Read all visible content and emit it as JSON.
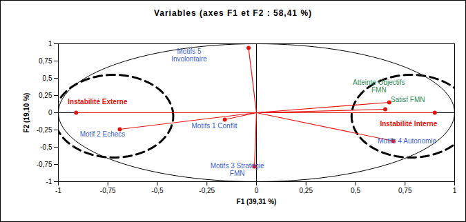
{
  "chart_data": {
    "type": "scatter",
    "title": "Variables (axes F1 et F2 : 58,41 %)",
    "x_label": "F1 (39,31 %)",
    "y_label": "F2 (19,10 %)",
    "labels": [
      "Motifs 5\nInvolontaire",
      "Instabilité Externe",
      "Motif 2 Echecs",
      "Motifs 1 Conflit",
      "Motifs 3 Stratégie\nFMN",
      "Atteinte Objectifs\nFMN",
      "Satisf FMN",
      "Instabilité Interne",
      "Motifs 4 Autonomie"
    ],
    "x": [
      -0.04,
      -0.91,
      -0.69,
      -0.16,
      -0.01,
      0.67,
      0.65,
      0.9,
      0.69
    ],
    "y": [
      0.94,
      0.0,
      -0.24,
      -0.1,
      -0.78,
      0.15,
      0.05,
      0.0,
      -0.41
    ],
    "color": "#e8120c",
    "marker": "circle",
    "xlim": [
      -1,
      1
    ],
    "ylim": [
      -1,
      1
    ],
    "xticks": [
      -1,
      {
        "value": -0.75,
        "label": "-0,75"
      },
      {
        "value": -0.5,
        "label": "-0,5"
      },
      {
        "value": -0.25,
        "label": "-0,25"
      },
      0,
      {
        "value": 0.25,
        "label": "0,25"
      },
      {
        "value": 0.5,
        "label": "0,5"
      },
      {
        "value": 0.75,
        "label": "0,75"
      },
      1
    ],
    "yticks": [
      -1,
      {
        "value": -0.75,
        "label": "-0,75"
      },
      {
        "value": -0.5,
        "label": "-0,5"
      },
      {
        "value": -0.25,
        "label": "-0,25"
      },
      0,
      {
        "value": 0.25,
        "label": "0,25"
      },
      {
        "value": 0.5,
        "label": "0,5"
      },
      {
        "value": 0.75,
        "label": "0,75"
      },
      1
    ],
    "grid": false
  }
}
